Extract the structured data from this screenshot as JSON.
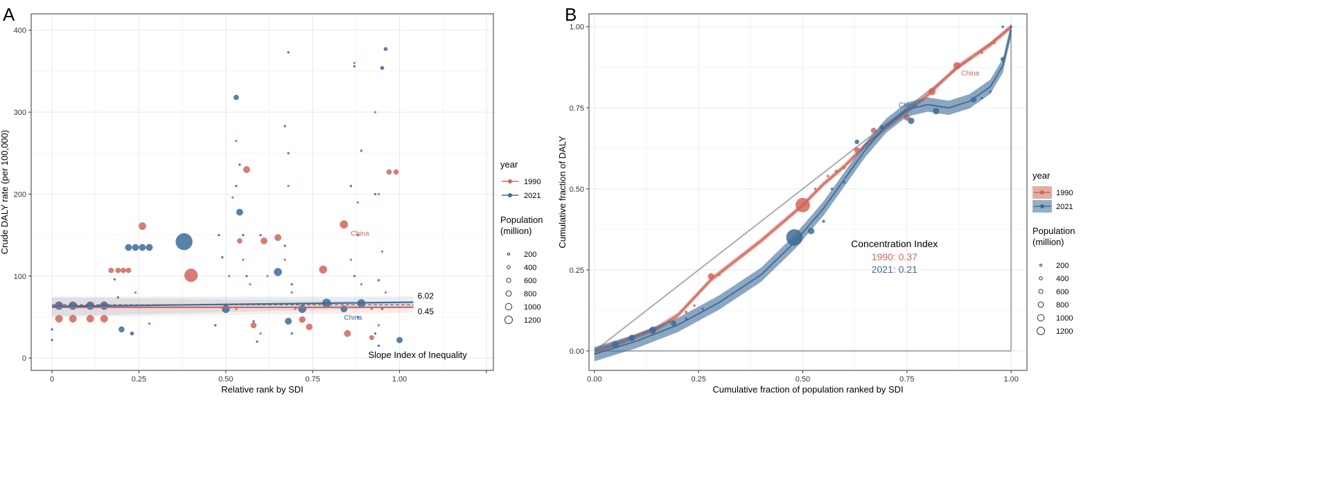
{
  "colors": {
    "c1990": "#d0675a",
    "c2021": "#3d6b98",
    "grid": "#ebebeb",
    "diag": "#aaaaaa"
  },
  "chart_data": [
    {
      "panel": "A",
      "type": "scatter",
      "xlabel": "Relative rank by SDI",
      "ylabel": "Crude DALY rate (per 100,000)",
      "xlim": [
        -0.06,
        1.27
      ],
      "ylim": [
        -15,
        420
      ],
      "xticks": [
        {
          "v": 0,
          "label": "0"
        },
        {
          "v": 0.25,
          "label": "0.25"
        },
        {
          "v": 0.5,
          "label": "0.50"
        },
        {
          "v": 0.75,
          "label": "0.75"
        },
        {
          "v": 1,
          "label": "1.00"
        },
        {
          "v": 1.25,
          "label": ""
        }
      ],
      "yticks": [
        {
          "v": 0,
          "label": "0"
        },
        {
          "v": 100,
          "label": "100"
        },
        {
          "v": 200,
          "label": "200"
        },
        {
          "v": 300,
          "label": "300"
        },
        {
          "v": 400,
          "label": "400"
        }
      ],
      "annotation": "Slope Index of Inequality",
      "fits": [
        {
          "year": "1990",
          "y0": 62,
          "y1": 62,
          "label": "0.45"
        },
        {
          "year": "2021",
          "y0": 63,
          "y1": 68,
          "label": "6.02"
        }
      ],
      "china_label": "China",
      "series": [
        {
          "name": "1990",
          "points": [
            [
              0.02,
              48,
              250
            ],
            [
              0.06,
              48,
              250
            ],
            [
              0.11,
              48,
              250
            ],
            [
              0.15,
              48,
              250
            ],
            [
              0.17,
              107,
              120
            ],
            [
              0.19,
              107,
              120
            ],
            [
              0.205,
              107,
              120
            ],
            [
              0.22,
              107,
              120
            ],
            [
              0.26,
              161,
              250
            ],
            [
              0.4,
              101,
              800
            ],
            [
              0.54,
              143,
              120
            ],
            [
              0.56,
              230,
              200
            ],
            [
              0.61,
              143,
              200
            ],
            [
              0.65,
              147,
              200
            ],
            [
              0.78,
              108,
              280
            ],
            [
              0.84,
              163,
              300
            ],
            [
              0.97,
              227,
              120
            ],
            [
              0.99,
              227,
              120
            ],
            [
              0.72,
              47,
              180
            ],
            [
              0.74,
              38,
              180
            ],
            [
              0.58,
              40,
              150
            ],
            [
              0.85,
              30,
              200
            ],
            [
              0.92,
              25,
              100
            ],
            [
              0.53,
              265,
              20
            ],
            [
              0.52,
              196,
              20
            ],
            [
              0.55,
              120,
              20
            ],
            [
              0.57,
              90,
              20
            ],
            [
              0.6,
              30,
              20
            ],
            [
              0.62,
              100,
              20
            ],
            [
              0.68,
              210,
              20
            ],
            [
              0.67,
              120,
              20
            ],
            [
              0.69,
              80,
              20
            ],
            [
              0.7,
              60,
              20
            ],
            [
              0.87,
              360,
              20
            ],
            [
              0.88,
              190,
              20
            ],
            [
              0.86,
              120,
              20
            ],
            [
              0.89,
              90,
              20
            ],
            [
              0.93,
              300,
              20
            ],
            [
              0.94,
              200,
              20
            ],
            [
              0.95,
              130,
              20
            ],
            [
              0.92,
              60,
              20
            ],
            [
              0.94,
              40,
              20
            ],
            [
              0.96,
              80,
              20
            ],
            [
              0.24,
              80,
              20
            ],
            [
              0.28,
              42,
              20
            ],
            [
              0.51,
              100,
              20
            ],
            [
              0.53,
              60,
              20
            ]
          ]
        },
        {
          "name": "2021",
          "points": [
            [
              0.02,
              64,
              300
            ],
            [
              0.06,
              64,
              300
            ],
            [
              0.11,
              64,
              300
            ],
            [
              0.15,
              64,
              300
            ],
            [
              0.22,
              135,
              200
            ],
            [
              0.24,
              135,
              200
            ],
            [
              0.26,
              135,
              200
            ],
            [
              0.28,
              135,
              200
            ],
            [
              0.38,
              142,
              1300
            ],
            [
              0.53,
              318,
              120
            ],
            [
              0.54,
              178,
              200
            ],
            [
              0.65,
              105,
              280
            ],
            [
              0.79,
              67,
              350
            ],
            [
              0.84,
              60,
              200
            ],
            [
              0.72,
              60,
              280
            ],
            [
              0.5,
              60,
              280
            ],
            [
              0.89,
              67,
              280
            ],
            [
              0.95,
              354,
              60
            ],
            [
              0.96,
              377,
              60
            ],
            [
              1.0,
              22,
              160
            ],
            [
              0.68,
              45,
              200
            ],
            [
              0.2,
              35,
              150
            ],
            [
              0.23,
              30,
              60
            ],
            [
              0.54,
              236,
              20
            ],
            [
              0.53,
              210,
              20
            ],
            [
              0.55,
              150,
              20
            ],
            [
              0.56,
              100,
              20
            ],
            [
              0.58,
              45,
              20
            ],
            [
              0.59,
              20,
              20
            ],
            [
              0.6,
              150,
              20
            ],
            [
              0.67,
              283,
              20
            ],
            [
              0.68,
              373,
              20
            ],
            [
              0.68,
              250,
              20
            ],
            [
              0.67,
              137,
              20
            ],
            [
              0.69,
              90,
              20
            ],
            [
              0.69,
              30,
              20
            ],
            [
              0.48,
              150,
              20
            ],
            [
              0.49,
              123,
              20
            ],
            [
              0.47,
              40,
              20
            ],
            [
              0.87,
              356,
              20
            ],
            [
              0.86,
              210,
              20
            ],
            [
              0.88,
              150,
              20
            ],
            [
              0.87,
              100,
              20
            ],
            [
              0.88,
              50,
              20
            ],
            [
              0.89,
              253,
              20
            ],
            [
              0.93,
              200,
              20
            ],
            [
              0.94,
              95,
              20
            ],
            [
              0.95,
              60,
              20
            ],
            [
              0.93,
              30,
              20
            ],
            [
              0.94,
              15,
              20
            ],
            [
              0,
              22,
              20
            ],
            [
              0,
              35,
              20
            ],
            [
              0.18,
              96,
              20
            ],
            [
              0.19,
              74,
              20
            ]
          ]
        }
      ],
      "legend": {
        "title": "year",
        "entries": [
          "1990",
          "2021"
        ],
        "size_title": "Population\n(million)",
        "sizes": [
          200,
          400,
          600,
          800,
          1000,
          1200
        ]
      }
    },
    {
      "panel": "B",
      "type": "line",
      "xlabel": "Cumulative fraction of population ranked by SDI",
      "ylabel": "Cumulative fraction of DALY",
      "xlim": [
        -0.04,
        1.05
      ],
      "ylim": [
        -0.06,
        1.04
      ],
      "xticks": [
        {
          "v": 0,
          "label": "0.00"
        },
        {
          "v": 0.25,
          "label": "0.25"
        },
        {
          "v": 0.5,
          "label": "0.50"
        },
        {
          "v": 0.75,
          "label": "0.75"
        },
        {
          "v": 1,
          "label": "1.00"
        }
      ],
      "yticks": [
        {
          "v": 0,
          "label": "0.00"
        },
        {
          "v": 0.25,
          "label": "0.25"
        },
        {
          "v": 0.5,
          "label": "0.50"
        },
        {
          "v": 0.75,
          "label": "0.75"
        },
        {
          "v": 1,
          "label": "1.00"
        }
      ],
      "annotation_title": "Concentration Index",
      "ci": [
        {
          "year": "1990",
          "text": "1990: 0.37"
        },
        {
          "year": "2021",
          "text": "2021: 0.21"
        }
      ],
      "china_label": "China",
      "series": [
        {
          "name": "1990",
          "curve": [
            [
              0,
              0
            ],
            [
              0.05,
              0.02
            ],
            [
              0.1,
              0.045
            ],
            [
              0.15,
              0.07
            ],
            [
              0.2,
              0.11
            ],
            [
              0.28,
              0.22
            ],
            [
              0.4,
              0.34
            ],
            [
              0.5,
              0.45
            ],
            [
              0.55,
              0.515
            ],
            [
              0.6,
              0.57
            ],
            [
              0.65,
              0.635
            ],
            [
              0.7,
              0.69
            ],
            [
              0.75,
              0.74
            ],
            [
              0.8,
              0.79
            ],
            [
              0.87,
              0.875
            ],
            [
              0.95,
              0.945
            ],
            [
              1,
              1
            ]
          ],
          "band": 0.008,
          "points": [
            [
              0.5,
              0.45,
              1000
            ],
            [
              0.28,
              0.23,
              200
            ],
            [
              0.87,
              0.88,
              250
            ],
            [
              0.81,
              0.8,
              250
            ],
            [
              0.75,
              0.72,
              180
            ],
            [
              0.67,
              0.68,
              150
            ],
            [
              0.63,
              0.62,
              150
            ],
            [
              0.14,
              0.06,
              150
            ],
            [
              0.09,
              0.04,
              100
            ],
            [
              0.22,
              0.12,
              40
            ],
            [
              0.24,
              0.14,
              30
            ],
            [
              0.53,
              0.5,
              30
            ],
            [
              0.56,
              0.54,
              30
            ],
            [
              0.58,
              0.555,
              30
            ],
            [
              0.6,
              0.565,
              30
            ],
            [
              0.9,
              0.9,
              30
            ],
            [
              0.93,
              0.92,
              30
            ],
            [
              0.96,
              0.95,
              30
            ],
            [
              0.99,
              0.99,
              30
            ],
            [
              0.3,
              0.235,
              30
            ],
            [
              0.18,
              0.09,
              30
            ]
          ]
        },
        {
          "name": "2021",
          "curve": [
            [
              0,
              -0.01
            ],
            [
              0.1,
              0.03
            ],
            [
              0.2,
              0.08
            ],
            [
              0.3,
              0.15
            ],
            [
              0.4,
              0.235
            ],
            [
              0.48,
              0.335
            ],
            [
              0.55,
              0.44
            ],
            [
              0.6,
              0.53
            ],
            [
              0.65,
              0.62
            ],
            [
              0.7,
              0.695
            ],
            [
              0.75,
              0.745
            ],
            [
              0.8,
              0.76
            ],
            [
              0.85,
              0.75
            ],
            [
              0.9,
              0.77
            ],
            [
              0.95,
              0.815
            ],
            [
              0.98,
              0.88
            ],
            [
              1,
              0.99
            ]
          ],
          "band": 0.022,
          "points": [
            [
              0.48,
              0.35,
              1300
            ],
            [
              0.52,
              0.37,
              200
            ],
            [
              0.05,
              0.02,
              200
            ],
            [
              0.09,
              0.04,
              200
            ],
            [
              0.14,
              0.065,
              200
            ],
            [
              0.19,
              0.085,
              150
            ],
            [
              0.76,
              0.71,
              200
            ],
            [
              0.82,
              0.74,
              200
            ],
            [
              0.91,
              0.775,
              150
            ],
            [
              0.98,
              0.9,
              100
            ],
            [
              0.63,
              0.645,
              100
            ],
            [
              0.69,
              0.69,
              100
            ],
            [
              0.55,
              0.4,
              40
            ],
            [
              0.57,
              0.5,
              30
            ],
            [
              0.6,
              0.52,
              30
            ],
            [
              0.22,
              0.1,
              30
            ],
            [
              0.26,
              0.13,
              30
            ],
            [
              0.93,
              0.78,
              30
            ],
            [
              0.95,
              0.8,
              30
            ],
            [
              1,
              1,
              30
            ],
            [
              0.98,
              1,
              30
            ]
          ]
        }
      ],
      "legend": {
        "title": "year",
        "entries": [
          "1990",
          "2021"
        ],
        "size_title": "Population\n(million)",
        "sizes": [
          200,
          400,
          600,
          800,
          1000,
          1200
        ]
      }
    }
  ],
  "panel_labels": [
    "A",
    "B"
  ]
}
